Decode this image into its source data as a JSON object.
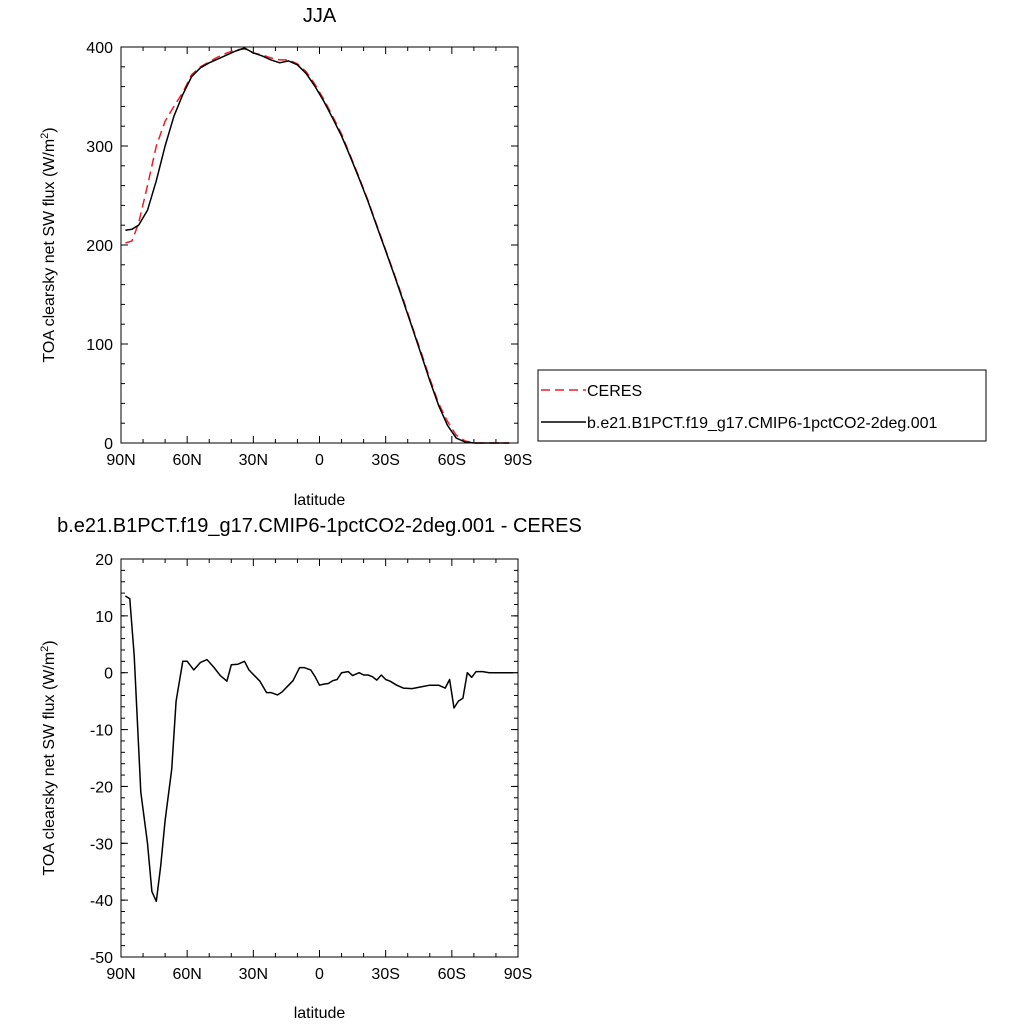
{
  "chart_data": [
    {
      "type": "line",
      "title": "JJA",
      "xlabel": "latitude",
      "ylabel": "TOA clearsky net SW flux (W/m",
      "ylabel_sup": "2",
      "ylabel_close": ")",
      "xlim": [
        90,
        -90
      ],
      "ylim": [
        0,
        400
      ],
      "x_ticks": [
        90,
        60,
        30,
        0,
        -30,
        -60,
        -90
      ],
      "x_tick_labels": [
        "90N",
        "60N",
        "30N",
        "0",
        "30S",
        "60S",
        "90S"
      ],
      "y_ticks": [
        0,
        100,
        200,
        300,
        400
      ],
      "y_tick_labels": [
        "0",
        "100",
        "200",
        "300",
        "400"
      ],
      "grid": false,
      "legend_position": "right",
      "series": [
        {
          "name": "CERES",
          "color": "#e8202a",
          "dash": "dashed",
          "x": [
            88,
            85,
            82,
            78,
            74,
            70,
            66,
            62,
            58,
            54,
            50,
            46,
            42,
            38,
            34,
            30,
            26,
            22,
            18,
            14,
            10,
            6,
            2,
            -2,
            -6,
            -10,
            -14,
            -18,
            -22,
            -26,
            -30,
            -34,
            -38,
            -42,
            -46,
            -50,
            -54,
            -58,
            -62,
            -66,
            -70,
            -74,
            -78,
            -82,
            -86
          ],
          "y": [
            202,
            204,
            222,
            260,
            300,
            325,
            340,
            354,
            372,
            380,
            385,
            390,
            394,
            397,
            398,
            394,
            392,
            389,
            387,
            387,
            383,
            375,
            362,
            347,
            330,
            312,
            290,
            268,
            245,
            220,
            195,
            170,
            145,
            118,
            92,
            65,
            40,
            22,
            8,
            2,
            0,
            0,
            0,
            0,
            0
          ]
        },
        {
          "name": "b.e21.B1PCT.f19_g17.CMIP6-1pctCO2-2deg.001",
          "color": "#000000",
          "dash": "solid",
          "x": [
            88,
            85,
            82,
            78,
            74,
            70,
            66,
            62,
            58,
            54,
            50,
            46,
            42,
            38,
            34,
            30,
            26,
            22,
            18,
            14,
            10,
            6,
            2,
            -2,
            -6,
            -10,
            -14,
            -18,
            -22,
            -26,
            -30,
            -34,
            -38,
            -42,
            -46,
            -50,
            -54,
            -58,
            -62,
            -66,
            -70,
            -74,
            -78,
            -82,
            -86
          ],
          "y": [
            215,
            216,
            220,
            235,
            265,
            300,
            330,
            352,
            370,
            379,
            384,
            388,
            392,
            396,
            399,
            394,
            391,
            387,
            384,
            386,
            382,
            373,
            360,
            345,
            328,
            310,
            289,
            267,
            244,
            219,
            194,
            169,
            143,
            117,
            90,
            63,
            38,
            18,
            5,
            1,
            0,
            0,
            0,
            0,
            0
          ]
        }
      ]
    },
    {
      "type": "line",
      "title": "b.e21.B1PCT.f19_g17.CMIP6-1pctCO2-2deg.001 - CERES",
      "xlabel": "latitude",
      "ylabel": "TOA clearsky net SW flux (W/m",
      "ylabel_sup": "2",
      "ylabel_close": ")",
      "xlim": [
        90,
        -90
      ],
      "ylim": [
        -50,
        20
      ],
      "x_ticks": [
        90,
        60,
        30,
        0,
        -30,
        -60,
        -90
      ],
      "x_tick_labels": [
        "90N",
        "60N",
        "30N",
        "0",
        "30S",
        "60S",
        "90S"
      ],
      "y_ticks": [
        -50,
        -40,
        -30,
        -20,
        -10,
        0,
        10,
        20
      ],
      "y_tick_labels": [
        "-50",
        "-40",
        "-30",
        "-20",
        "-10",
        "0",
        "10",
        "20"
      ],
      "grid": false,
      "series": [
        {
          "color": "#000000",
          "dash": "solid",
          "x": [
            88,
            86,
            84,
            81,
            78,
            76,
            74,
            72,
            70,
            67,
            65,
            62,
            60,
            57,
            54,
            51,
            48,
            45,
            42,
            40,
            37,
            34,
            32,
            29,
            27,
            24,
            22,
            19,
            17,
            14,
            12,
            9,
            7,
            4,
            2,
            0,
            -2,
            -4,
            -6,
            -8,
            -10,
            -13,
            -15,
            -18,
            -20,
            -22,
            -24,
            -26,
            -28,
            -30,
            -32,
            -35,
            -38,
            -42,
            -46,
            -50,
            -54,
            -57,
            -59,
            -61,
            -63,
            -65,
            -67,
            -69,
            -71,
            -74,
            -77,
            -80,
            -84,
            -88
          ],
          "y": [
            13.5,
            13,
            3,
            -21,
            -30,
            -38.5,
            -40.2,
            -34,
            -26,
            -17,
            -5,
            2,
            2,
            0.5,
            1.8,
            2.3,
            1,
            -0.5,
            -1.5,
            1.4,
            1.5,
            2,
            0.5,
            -0.7,
            -1.5,
            -3.5,
            -3.5,
            -3.9,
            -3.4,
            -2.2,
            -1.4,
            0.9,
            0.9,
            0.5,
            -0.7,
            -2.2,
            -2,
            -1.9,
            -1.4,
            -1.2,
            0,
            0.2,
            -0.5,
            0,
            -0.4,
            -0.4,
            -0.7,
            -1.3,
            -0.4,
            -1.2,
            -1.5,
            -2.2,
            -2.7,
            -2.8,
            -2.5,
            -2.2,
            -2.2,
            -2.7,
            -1.2,
            -6.2,
            -5,
            -4.5,
            0,
            -0.8,
            0.2,
            0.2,
            0,
            0,
            0,
            0
          ]
        }
      ]
    }
  ]
}
